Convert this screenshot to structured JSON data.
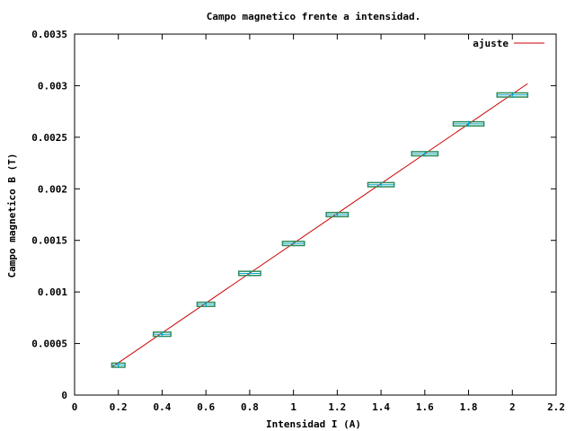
{
  "chart_data": {
    "type": "scatter",
    "title": "Campo magnetico frente a intensidad.",
    "xlabel": "Intensidad I (A)",
    "ylabel": "Campo magnetico B (T)",
    "xlim": [
      0,
      2.2
    ],
    "ylim": [
      0,
      0.0035
    ],
    "x_ticks": [
      "0",
      "0.2",
      "0.4",
      "0.6",
      "0.8",
      "1",
      "1.2",
      "1.4",
      "1.6",
      "1.8",
      "2",
      "2.2"
    ],
    "y_ticks": [
      "0",
      "0.0005",
      "0.001",
      "0.0015",
      "0.002",
      "0.0025",
      "0.003",
      "0.0035"
    ],
    "grid": false,
    "legend_position": "top-right",
    "series": [
      {
        "kind": "data-with-errors",
        "x": [
          0.2,
          0.4,
          0.6,
          0.8,
          1.0,
          1.2,
          1.4,
          1.6,
          1.8,
          2.0
        ],
        "y": [
          0.00029,
          0.00059,
          0.00088,
          0.00118,
          0.00147,
          0.00175,
          0.00204,
          0.00234,
          0.00263,
          0.00291
        ],
        "xerr": [
          0.03,
          0.04,
          0.04,
          0.05,
          0.05,
          0.05,
          0.06,
          0.06,
          0.07,
          0.07
        ],
        "yerr": [
          2e-05,
          2e-05,
          2e-05,
          2e-05,
          2e-05,
          2e-05,
          2e-05,
          2e-05,
          2e-05,
          2e-05
        ],
        "colors": {
          "box": "#2e8b57",
          "bar": "#00aacc"
        }
      },
      {
        "kind": "fit-line",
        "name": "ajuste",
        "x": [
          0.17,
          2.07
        ],
        "y": [
          0.00027,
          0.00302
        ],
        "color": "#cc0000"
      }
    ]
  }
}
